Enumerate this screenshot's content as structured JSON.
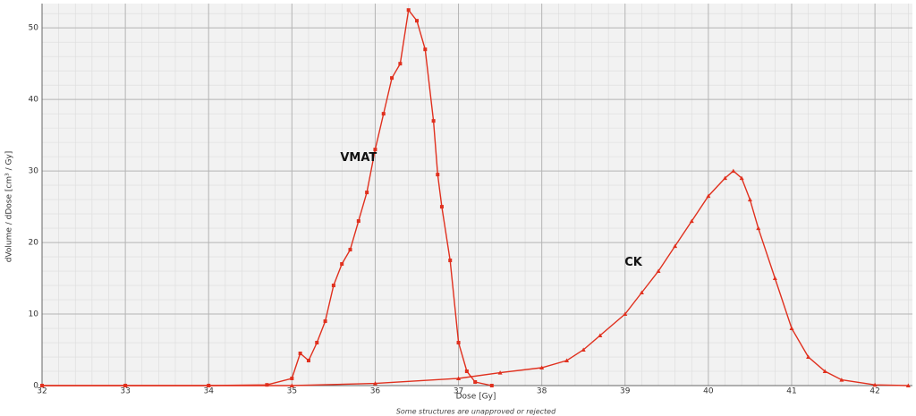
{
  "chart_data": {
    "type": "line",
    "x_label": "Dose [Gy]",
    "y_label": "dVolume / dDose [cm³ / Gy]",
    "footnote": "Some structures are unapproved or rejected",
    "xlim": [
      32,
      42.45
    ],
    "ylim": [
      0,
      53.4
    ],
    "xticks": [
      32,
      33,
      34,
      35,
      36,
      37,
      38,
      39,
      40,
      41,
      42
    ],
    "yticks": [
      0,
      10,
      20,
      30,
      40,
      50
    ],
    "grid": true,
    "series": [
      {
        "name": "VMAT",
        "color": "#e0301e",
        "marker": "square",
        "x": [
          32,
          33,
          34,
          34.7,
          35.0,
          35.1,
          35.2,
          35.3,
          35.4,
          35.5,
          35.6,
          35.7,
          35.8,
          35.9,
          36.0,
          36.1,
          36.2,
          36.3,
          36.4,
          36.5,
          36.6,
          36.7,
          36.75,
          36.8,
          36.9,
          37.0,
          37.1,
          37.2,
          37.4
        ],
        "values": [
          0,
          0,
          0,
          0.1,
          1,
          4.5,
          3.5,
          6,
          9,
          14,
          17,
          19,
          23,
          27,
          33,
          38,
          43,
          45,
          52.5,
          51,
          47,
          37,
          29.5,
          25,
          17.5,
          6,
          2,
          0.5,
          0
        ]
      },
      {
        "name": "CK",
        "color": "#e0301e",
        "marker": "triangle",
        "x": [
          32,
          33,
          34,
          35,
          36,
          37,
          37.5,
          38,
          38.3,
          38.5,
          38.7,
          39.0,
          39.2,
          39.4,
          39.6,
          39.8,
          40.0,
          40.2,
          40.3,
          40.4,
          40.5,
          40.6,
          40.8,
          41.0,
          41.2,
          41.4,
          41.6,
          42.0,
          42.4
        ],
        "values": [
          0,
          0,
          0,
          0,
          0.3,
          1,
          1.8,
          2.5,
          3.5,
          5,
          7,
          10,
          13,
          16,
          19.5,
          23,
          26.5,
          29,
          30,
          29,
          26,
          22,
          15,
          8,
          4,
          2,
          0.8,
          0.1,
          0
        ]
      }
    ],
    "annotations": [
      {
        "text": "VMAT",
        "x": 35.8,
        "y": 31.8
      },
      {
        "text": "CK",
        "x": 39.1,
        "y": 17.2
      }
    ]
  }
}
